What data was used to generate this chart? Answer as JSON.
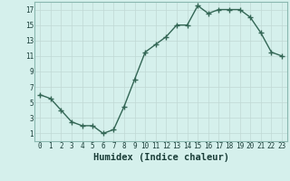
{
  "x": [
    0,
    1,
    2,
    3,
    4,
    5,
    6,
    7,
    8,
    9,
    10,
    11,
    12,
    13,
    14,
    15,
    16,
    17,
    18,
    19,
    20,
    21,
    22,
    23
  ],
  "y": [
    6,
    5.5,
    4,
    2.5,
    2,
    2,
    1,
    1.5,
    4.5,
    8,
    11.5,
    12.5,
    13.5,
    15,
    15,
    17.5,
    16.5,
    17,
    17,
    17,
    16,
    14,
    11.5,
    11
  ],
  "line_color": "#336655",
  "marker": "+",
  "marker_size": 4,
  "marker_lw": 1.0,
  "bg_color": "#d5f0ec",
  "grid_color": "#c0d8d4",
  "xlabel": "Humidex (Indice chaleur)",
  "xlabel_fontsize": 7.5,
  "xlim": [
    -0.5,
    23.5
  ],
  "ylim": [
    0,
    18
  ],
  "yticks": [
    1,
    3,
    5,
    7,
    9,
    11,
    13,
    15,
    17
  ],
  "xticks": [
    0,
    1,
    2,
    3,
    4,
    5,
    6,
    7,
    8,
    9,
    10,
    11,
    12,
    13,
    14,
    15,
    16,
    17,
    18,
    19,
    20,
    21,
    22,
    23
  ],
  "tick_fontsize": 5.5,
  "line_width": 1.0
}
